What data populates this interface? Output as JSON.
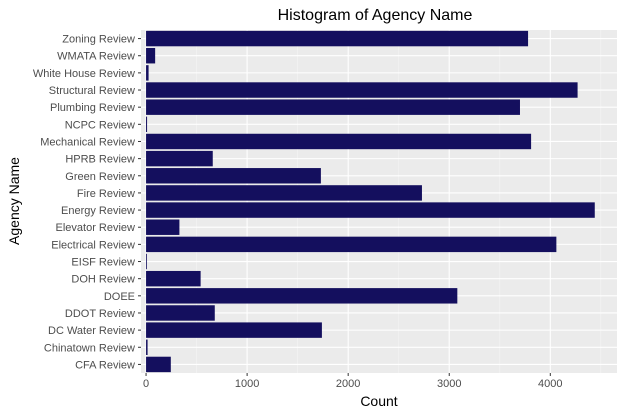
{
  "chart_data": {
    "type": "bar",
    "orientation": "horizontal",
    "title": "Histogram of Agency Name",
    "xlabel": "Count",
    "ylabel": "Agency Name",
    "xlim": [
      -50,
      4660
    ],
    "x_ticks": [
      0,
      1000,
      2000,
      3000,
      4000
    ],
    "x_tick_labels": [
      "0",
      "1000",
      "2000",
      "3000",
      "4000"
    ],
    "grid": true,
    "legend": "none",
    "categories": [
      "Zoning Review",
      "WMATA Review",
      "White House Review",
      "Structural Review",
      "Plumbing Review",
      "NCPC Review",
      "Mechanical Review",
      "HPRB Review",
      "Green Review",
      "Fire Review",
      "Energy Review",
      "Elevator Review",
      "Electrical Review",
      "EISF Review",
      "DOH Review",
      "DOEE",
      "DDOT Review",
      "DC Water Review",
      "Chinatown Review",
      "CFA Review"
    ],
    "values": [
      3780,
      90,
      25,
      4270,
      3700,
      10,
      3810,
      660,
      1730,
      2730,
      4440,
      330,
      4060,
      8,
      540,
      3080,
      680,
      1740,
      15,
      245
    ],
    "colors": {
      "bar": "#140f5e",
      "panel": "#ebebeb",
      "grid_major": "#ffffff",
      "grid_minor": "#f5f5f5",
      "tick_label": "#4d4d4d",
      "tick_mark": "#333333"
    }
  }
}
